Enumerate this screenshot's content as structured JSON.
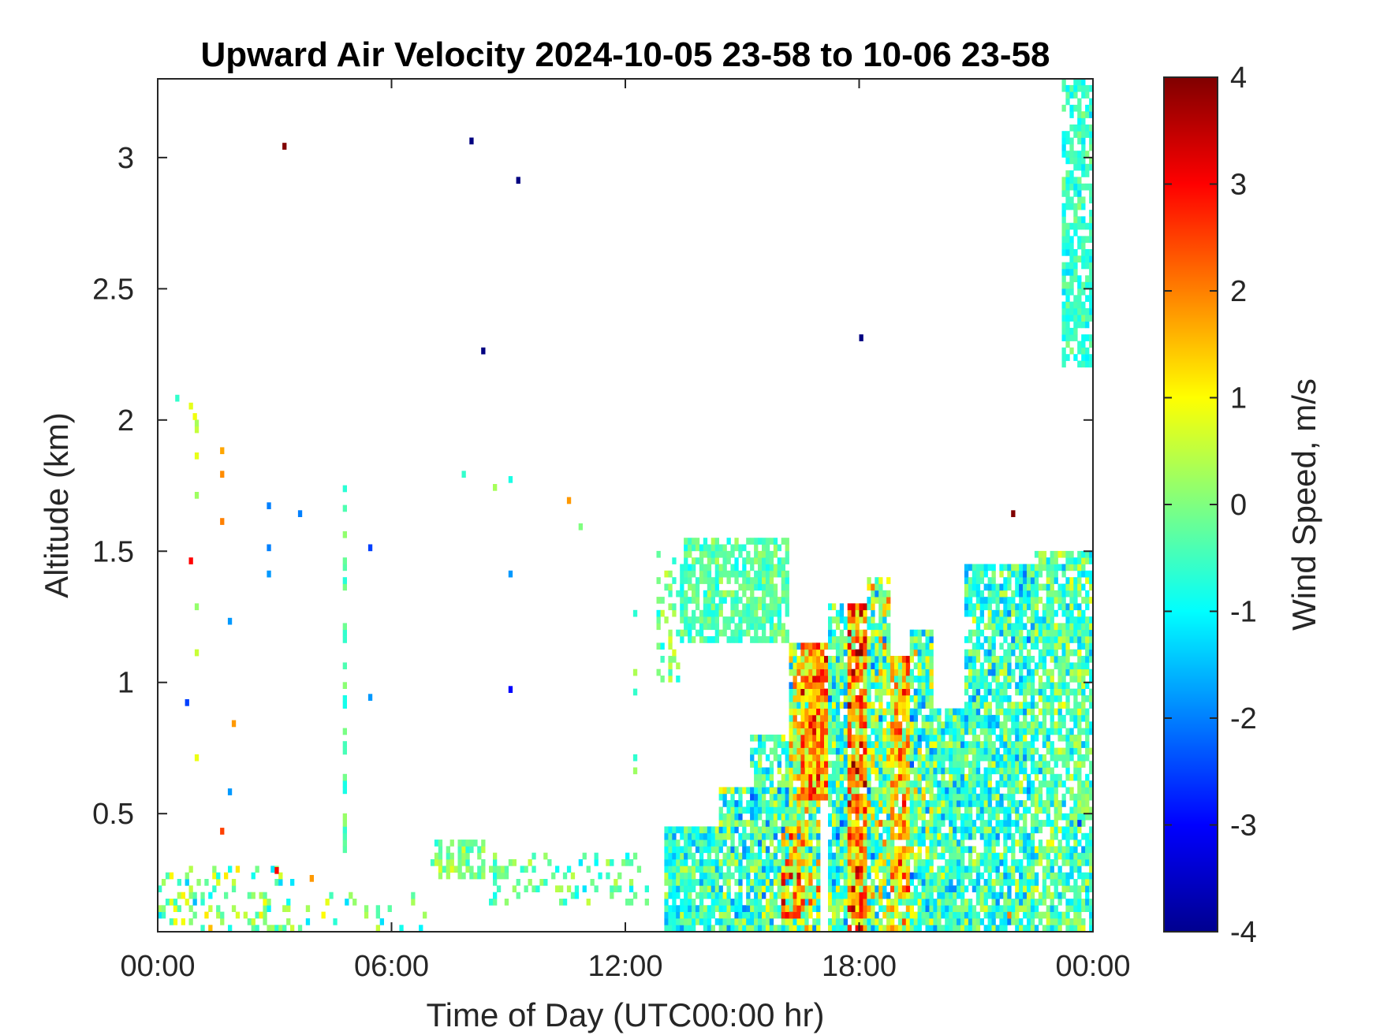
{
  "chart_data": {
    "type": "heatmap",
    "title": "Upward Air Velocity 2024-10-05 23-58 to 10-06 23-58",
    "xlabel": "Time of Day (UTC00:00 hr)",
    "ylabel": "Altitude (km)",
    "colorbar_label": "Wind Speed, m/s",
    "x_unit": "hours",
    "xlim": [
      0,
      24
    ],
    "ylim": [
      0.05,
      3.3
    ],
    "clim": [
      -4,
      4
    ],
    "colormap": "jet",
    "x_ticks": [
      0,
      6,
      12,
      18,
      24
    ],
    "x_tick_labels": [
      "00:00",
      "06:00",
      "12:00",
      "18:00",
      "00:00"
    ],
    "y_ticks": [
      0.5,
      1,
      1.5,
      2,
      2.5,
      3
    ],
    "y_tick_labels": [
      "0.5",
      "1",
      "1.5",
      "2",
      "2.5",
      "3"
    ],
    "colorbar_ticks": [
      4,
      3,
      2,
      1,
      0,
      -1,
      -2,
      -3,
      -4
    ],
    "colorbar_tick_labels": [
      "4",
      "3",
      "2",
      "1",
      "0",
      "-1",
      "-2",
      "-3",
      "-4"
    ],
    "grid": false,
    "regions": [
      {
        "x": [
          13.0,
          14.4
        ],
        "y": [
          0.05,
          0.45
        ],
        "mean": -0.6,
        "spread": 0.9,
        "fill": 0.9
      },
      {
        "x": [
          14.4,
          16.2
        ],
        "y": [
          0.05,
          0.6
        ],
        "mean": -0.5,
        "spread": 1.2,
        "fill": 0.9
      },
      {
        "x": [
          15.2,
          16.2
        ],
        "y": [
          0.6,
          0.8
        ],
        "mean": -0.5,
        "spread": 1.0,
        "fill": 0.7
      },
      {
        "x": [
          16.2,
          17.0
        ],
        "y": [
          0.05,
          1.15
        ],
        "mean": 0.3,
        "spread": 1.5,
        "fill": 0.92
      },
      {
        "x": [
          16.5,
          17.2
        ],
        "y": [
          0.55,
          1.15
        ],
        "mean": 1.8,
        "spread": 1.2,
        "fill": 0.95
      },
      {
        "x": [
          16.0,
          16.6
        ],
        "y": [
          0.1,
          0.45
        ],
        "mean": 1.5,
        "spread": 1.5,
        "fill": 0.8
      },
      {
        "x": [
          17.2,
          17.7
        ],
        "y": [
          0.05,
          1.3
        ],
        "mean": -0.6,
        "spread": 1.2,
        "fill": 0.9
      },
      {
        "x": [
          17.7,
          18.2
        ],
        "y": [
          0.05,
          1.3
        ],
        "mean": 1.8,
        "spread": 1.6,
        "fill": 0.95
      },
      {
        "x": [
          18.2,
          18.8
        ],
        "y": [
          0.05,
          1.4
        ],
        "mean": 0.0,
        "spread": 1.5,
        "fill": 0.9
      },
      {
        "x": [
          18.8,
          19.3
        ],
        "y": [
          0.05,
          1.1
        ],
        "mean": 1.2,
        "spread": 1.4,
        "fill": 0.9
      },
      {
        "x": [
          19.3,
          19.9
        ],
        "y": [
          0.05,
          1.2
        ],
        "mean": -0.3,
        "spread": 1.3,
        "fill": 0.9
      },
      {
        "x": [
          19.9,
          20.7
        ],
        "y": [
          0.05,
          0.9
        ],
        "mean": -0.5,
        "spread": 1.0,
        "fill": 0.9
      },
      {
        "x": [
          20.7,
          22.5
        ],
        "y": [
          0.05,
          1.45
        ],
        "mean": -0.6,
        "spread": 1.0,
        "fill": 0.82
      },
      {
        "x": [
          22.5,
          24.0
        ],
        "y": [
          0.05,
          1.5
        ],
        "mean": -0.4,
        "spread": 0.9,
        "fill": 0.75
      },
      {
        "x": [
          13.4,
          16.2
        ],
        "y": [
          1.15,
          1.55
        ],
        "mean": -0.3,
        "spread": 0.5,
        "fill": 0.75
      },
      {
        "x": [
          12.8,
          13.4
        ],
        "y": [
          1.0,
          1.5
        ],
        "mean": -0.2,
        "spread": 0.7,
        "fill": 0.3
      },
      {
        "x": [
          7.0,
          8.4
        ],
        "y": [
          0.25,
          0.4
        ],
        "mean": 0.0,
        "spread": 0.6,
        "fill": 0.6
      },
      {
        "x": [
          8.4,
          12.6
        ],
        "y": [
          0.15,
          0.35
        ],
        "mean": -0.3,
        "spread": 0.7,
        "fill": 0.25
      },
      {
        "x": [
          0.0,
          3.5
        ],
        "y": [
          0.05,
          0.3
        ],
        "mean": 0.0,
        "spread": 1.0,
        "fill": 0.25
      },
      {
        "x": [
          3.5,
          7.0
        ],
        "y": [
          0.05,
          0.2
        ],
        "mean": 0.0,
        "spread": 1.0,
        "fill": 0.12
      },
      {
        "x": [
          23.2,
          24.0
        ],
        "y": [
          2.2,
          3.3
        ],
        "mean": -0.6,
        "spread": 0.5,
        "fill": 0.7
      }
    ],
    "speckles": [
      {
        "x": 3.2,
        "y": 3.03,
        "v": 4.0
      },
      {
        "x": 8.0,
        "y": 3.05,
        "v": -4.0
      },
      {
        "x": 9.2,
        "y": 2.9,
        "v": -4.0
      },
      {
        "x": 8.3,
        "y": 2.25,
        "v": -4.0
      },
      {
        "x": 18.0,
        "y": 2.3,
        "v": -4.0
      },
      {
        "x": 21.9,
        "y": 1.63,
        "v": 4.0
      },
      {
        "x": 10.5,
        "y": 1.68,
        "v": 1.8
      },
      {
        "x": 0.45,
        "y": 2.07,
        "v": -0.6
      },
      {
        "x": 0.8,
        "y": 2.04,
        "v": 0.8
      },
      {
        "x": 0.9,
        "y": 2.0,
        "v": 0.9
      },
      {
        "x": 1.6,
        "y": 1.87,
        "v": 1.7
      },
      {
        "x": 1.6,
        "y": 1.78,
        "v": 1.9
      },
      {
        "x": 1.6,
        "y": 1.6,
        "v": 2.0
      },
      {
        "x": 0.8,
        "y": 1.45,
        "v": 3.0
      },
      {
        "x": 2.8,
        "y": 1.66,
        "v": -2.0
      },
      {
        "x": 2.8,
        "y": 1.5,
        "v": -2.0
      },
      {
        "x": 3.6,
        "y": 1.63,
        "v": -2.0
      },
      {
        "x": 2.8,
        "y": 1.4,
        "v": -1.8
      },
      {
        "x": 5.4,
        "y": 1.5,
        "v": -2.5
      },
      {
        "x": 1.8,
        "y": 1.22,
        "v": -1.8
      },
      {
        "x": 9.0,
        "y": 1.4,
        "v": -1.8
      },
      {
        "x": 9.0,
        "y": 0.96,
        "v": -3.0
      },
      {
        "x": 0.7,
        "y": 0.91,
        "v": -2.5
      },
      {
        "x": 5.4,
        "y": 0.93,
        "v": -1.8
      },
      {
        "x": 1.9,
        "y": 0.83,
        "v": 1.8
      },
      {
        "x": 1.8,
        "y": 0.57,
        "v": -1.8
      },
      {
        "x": 1.6,
        "y": 0.42,
        "v": 2.5
      },
      {
        "x": 3.0,
        "y": 0.27,
        "v": 3.0
      },
      {
        "x": 3.9,
        "y": 0.24,
        "v": 1.8
      },
      {
        "x": 10.8,
        "y": 1.58,
        "v": 0.0
      },
      {
        "x": 7.8,
        "y": 1.78,
        "v": -0.6
      },
      {
        "x": 9.0,
        "y": 1.76,
        "v": -0.8
      },
      {
        "x": 8.6,
        "y": 1.73,
        "v": 0.3
      },
      {
        "x": 22.4,
        "y": 1.2,
        "v": -1.8
      },
      {
        "x": 23.6,
        "y": 0.45,
        "v": -2.5
      },
      {
        "x": 21.8,
        "y": 0.1,
        "v": 2.0
      }
    ],
    "columns": [
      {
        "x": 4.75,
        "y": [
          0.25,
          1.77
        ],
        "mean": -0.4,
        "fill": 0.45
      },
      {
        "x": 0.95,
        "y": [
          0.55,
          2.0
        ],
        "mean": 0.3,
        "fill": 0.2
      },
      {
        "x": 12.2,
        "y": [
          0.3,
          1.52
        ],
        "mean": -0.2,
        "fill": 0.25
      }
    ]
  }
}
